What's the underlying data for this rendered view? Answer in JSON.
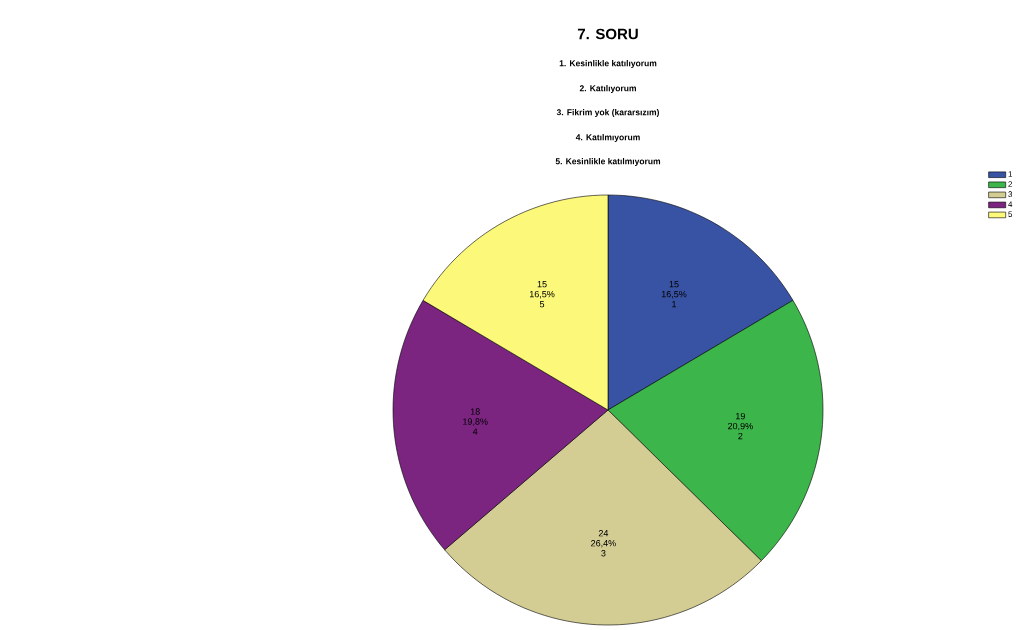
{
  "chart_data": {
    "type": "pie",
    "title": "7. SORU",
    "annotations": [
      "1. Kesinlikle katılıyorum",
      "2. Katılıyorum",
      "3. Fikrim yok (kararsızım)",
      "4. Katılmıyorum",
      "5. Kesinlikle katılmıyorum"
    ],
    "categories": [
      "1",
      "2",
      "3",
      "4",
      "5"
    ],
    "values": [
      15,
      19,
      24,
      18,
      15
    ],
    "value_labels": [
      "15 16,5% 1",
      "19 20,9% 2",
      "24 26,4% 3",
      "18 19,8% 4",
      "15 16,5% 5"
    ],
    "colors": [
      "#3953a4",
      "#3cb54a",
      "#d3cd94",
      "#7b2480",
      "#fbf87a"
    ],
    "legend": "right"
  }
}
